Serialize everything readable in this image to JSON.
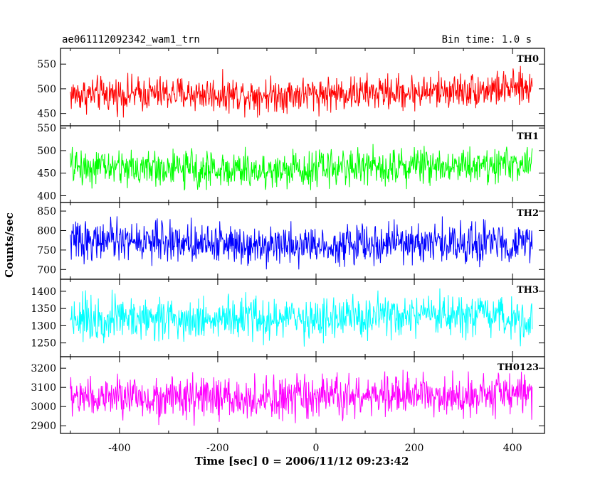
{
  "header": {
    "title": "ae061112092342_wam1_trn",
    "bin_time": "Bin time: 1.0 s"
  },
  "chart_data": {
    "type": "line",
    "title": "ae061112092342_wam1_trn",
    "subtitle": "Bin time: 1.0 s",
    "xlabel": "Time [sec] 0 = 2006/11/12 09:23:42",
    "ylabel": "Counts/sec",
    "xlim": [
      -520,
      465
    ],
    "x_range_data": [
      -500,
      440
    ],
    "bin_time_s": 1.0,
    "x_ticks": [
      -400,
      -200,
      0,
      200,
      400
    ],
    "grid": false,
    "legend": "none",
    "panels": [
      {
        "name": "TH0",
        "color": "#ff0000",
        "ylim": [
          425,
          582
        ],
        "y_ticks": [
          450,
          500,
          550
        ],
        "mean": 490,
        "amplitude": 42,
        "trend": [
          [
            -500,
            488
          ],
          [
            -300,
            490
          ],
          [
            -100,
            488
          ],
          [
            0,
            490
          ],
          [
            200,
            493
          ],
          [
            440,
            502
          ]
        ]
      },
      {
        "name": "TH1",
        "color": "#00ff00",
        "ylim": [
          385,
          555
        ],
        "y_ticks": [
          400,
          450,
          500,
          550
        ],
        "mean": 462,
        "amplitude": 48,
        "trend": [
          [
            -500,
            465
          ],
          [
            -300,
            460
          ],
          [
            -100,
            455
          ],
          [
            0,
            462
          ],
          [
            200,
            468
          ],
          [
            440,
            470
          ]
        ]
      },
      {
        "name": "TH2",
        "color": "#0000ff",
        "ylim": [
          675,
          872
        ],
        "y_ticks": [
          700,
          750,
          800,
          850
        ],
        "mean": 770,
        "amplitude": 60,
        "trend": [
          [
            -500,
            775
          ],
          [
            -300,
            772
          ],
          [
            -100,
            766
          ],
          [
            0,
            762
          ],
          [
            200,
            768
          ],
          [
            440,
            768
          ]
        ]
      },
      {
        "name": "TH3",
        "color": "#00ffff",
        "ylim": [
          1210,
          1435
        ],
        "y_ticks": [
          1250,
          1300,
          1350,
          1400
        ],
        "mean": 1322,
        "amplitude": 75,
        "trend": [
          [
            -500,
            1325
          ],
          [
            -300,
            1322
          ],
          [
            -100,
            1318
          ],
          [
            0,
            1320
          ],
          [
            200,
            1325
          ],
          [
            440,
            1322
          ]
        ]
      },
      {
        "name": "TH0123",
        "color": "#ff00ff",
        "ylim": [
          2860,
          3260
        ],
        "y_ticks": [
          2900,
          3000,
          3100,
          3200
        ],
        "mean": 3050,
        "amplitude": 130,
        "trend": [
          [
            -500,
            3050
          ],
          [
            -300,
            3045
          ],
          [
            -100,
            3035
          ],
          [
            0,
            3045
          ],
          [
            200,
            3060
          ],
          [
            440,
            3070
          ]
        ]
      }
    ]
  }
}
